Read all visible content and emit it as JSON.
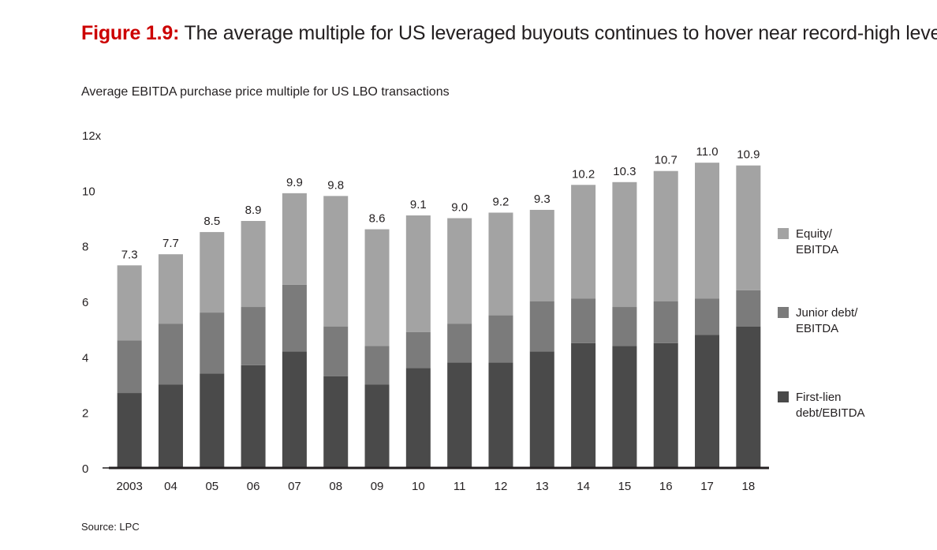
{
  "figure": {
    "lead": "Figure 1.9:",
    "title": "The average multiple for US leveraged buyouts continues to hover near record-high levels",
    "subtitle": "Average EBITDA purchase price multiple for US LBO transactions",
    "source": "Source: LPC"
  },
  "chart_data": {
    "type": "bar",
    "stacked": true,
    "categories": [
      "2003",
      "04",
      "05",
      "06",
      "07",
      "08",
      "09",
      "10",
      "11",
      "12",
      "13",
      "14",
      "15",
      "16",
      "17",
      "18"
    ],
    "series": [
      {
        "name": "First-lien debt/EBITDA",
        "color": "#4a4a4a",
        "values": [
          2.7,
          3.0,
          3.4,
          3.7,
          4.2,
          3.3,
          3.0,
          3.6,
          3.8,
          3.8,
          4.2,
          4.5,
          4.4,
          4.5,
          4.8,
          5.1
        ]
      },
      {
        "name": "Junior debt/EBITDA",
        "color": "#7b7b7b",
        "values": [
          1.9,
          2.2,
          2.2,
          2.1,
          2.4,
          1.8,
          1.4,
          1.3,
          1.4,
          1.7,
          1.8,
          1.6,
          1.4,
          1.5,
          1.3,
          1.3
        ]
      },
      {
        "name": "Equity/ EBITDA",
        "color": "#a3a3a3",
        "values": [
          2.7,
          2.5,
          2.9,
          3.1,
          3.3,
          4.7,
          4.2,
          4.2,
          3.8,
          3.7,
          3.3,
          4.1,
          4.5,
          4.7,
          4.9,
          4.5
        ]
      }
    ],
    "totals": [
      "7.3",
      "7.7",
      "8.5",
      "8.9",
      "9.9",
      "9.8",
      "8.6",
      "9.1",
      "9.0",
      "9.2",
      "9.3",
      "10.2",
      "10.3",
      "10.7",
      "11.0",
      "10.9"
    ],
    "yticks": [
      "0",
      "2",
      "4",
      "6",
      "8",
      "10",
      "12x"
    ],
    "ylim": [
      0,
      12
    ],
    "legend": {
      "placement": "right",
      "entries": [
        {
          "lines": [
            "Equity/",
            "EBITDA"
          ],
          "color": "#a3a3a3"
        },
        {
          "lines": [
            "Junior debt/",
            "EBITDA"
          ],
          "color": "#7b7b7b"
        },
        {
          "lines": [
            "First-lien",
            "debt/EBITDA"
          ],
          "color": "#4a4a4a"
        }
      ]
    }
  }
}
